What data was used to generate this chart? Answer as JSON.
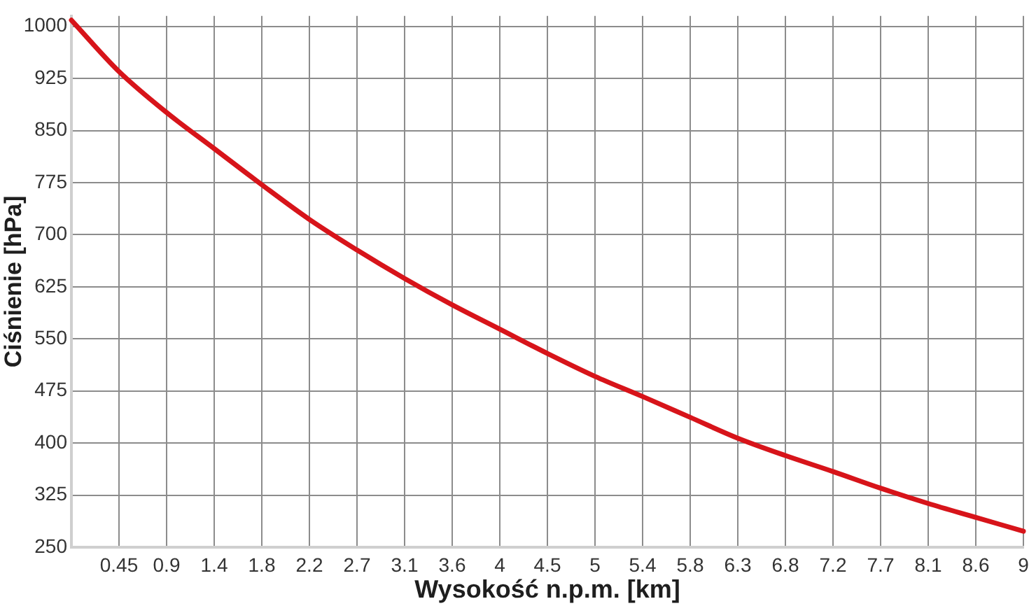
{
  "chart_data": {
    "type": "line",
    "xlabel": "Wysokość n.p.m. [km]",
    "ylabel": "Ciśnienie [hPa]",
    "x": [
      0,
      0.45,
      0.9,
      1.35,
      1.8,
      2.25,
      2.7,
      3.15,
      3.6,
      4.05,
      4.5,
      4.95,
      5.4,
      5.85,
      6.3,
      6.75,
      7.2,
      7.65,
      8.1,
      8.55,
      9
    ],
    "series": [
      {
        "color": "#d7141a",
        "values": [
          1009,
          935,
          876,
          824,
          772,
          722,
          678,
          637,
          599,
          564,
          529,
          496,
          467,
          437,
          407,
          382,
          359,
          335,
          313,
          293,
          273
        ]
      }
    ],
    "xlim": [
      0,
      9
    ],
    "xticks": [
      0.45,
      0.9,
      {
        "value": 1.35,
        "label": "1.4"
      },
      1.8,
      {
        "value": 2.25,
        "label": "2.2"
      },
      2.7,
      {
        "value": 3.15,
        "label": "3.1"
      },
      3.6,
      {
        "value": 4.05,
        "label": "4"
      },
      4.5,
      {
        "value": 4.95,
        "label": "5"
      },
      5.4,
      {
        "value": 5.85,
        "label": "5.8"
      },
      6.3,
      {
        "value": 6.75,
        "label": "6.8"
      },
      7.2,
      {
        "value": 7.65,
        "label": "7.7"
      },
      8.1,
      {
        "value": 8.55,
        "label": "8.6"
      },
      9
    ],
    "ylim": [
      250,
      1015
    ],
    "yticks": [
      250,
      325,
      400,
      475,
      550,
      625,
      700,
      775,
      850,
      925,
      1000
    ],
    "grid": true,
    "marker": "none",
    "line_style": "solid"
  }
}
